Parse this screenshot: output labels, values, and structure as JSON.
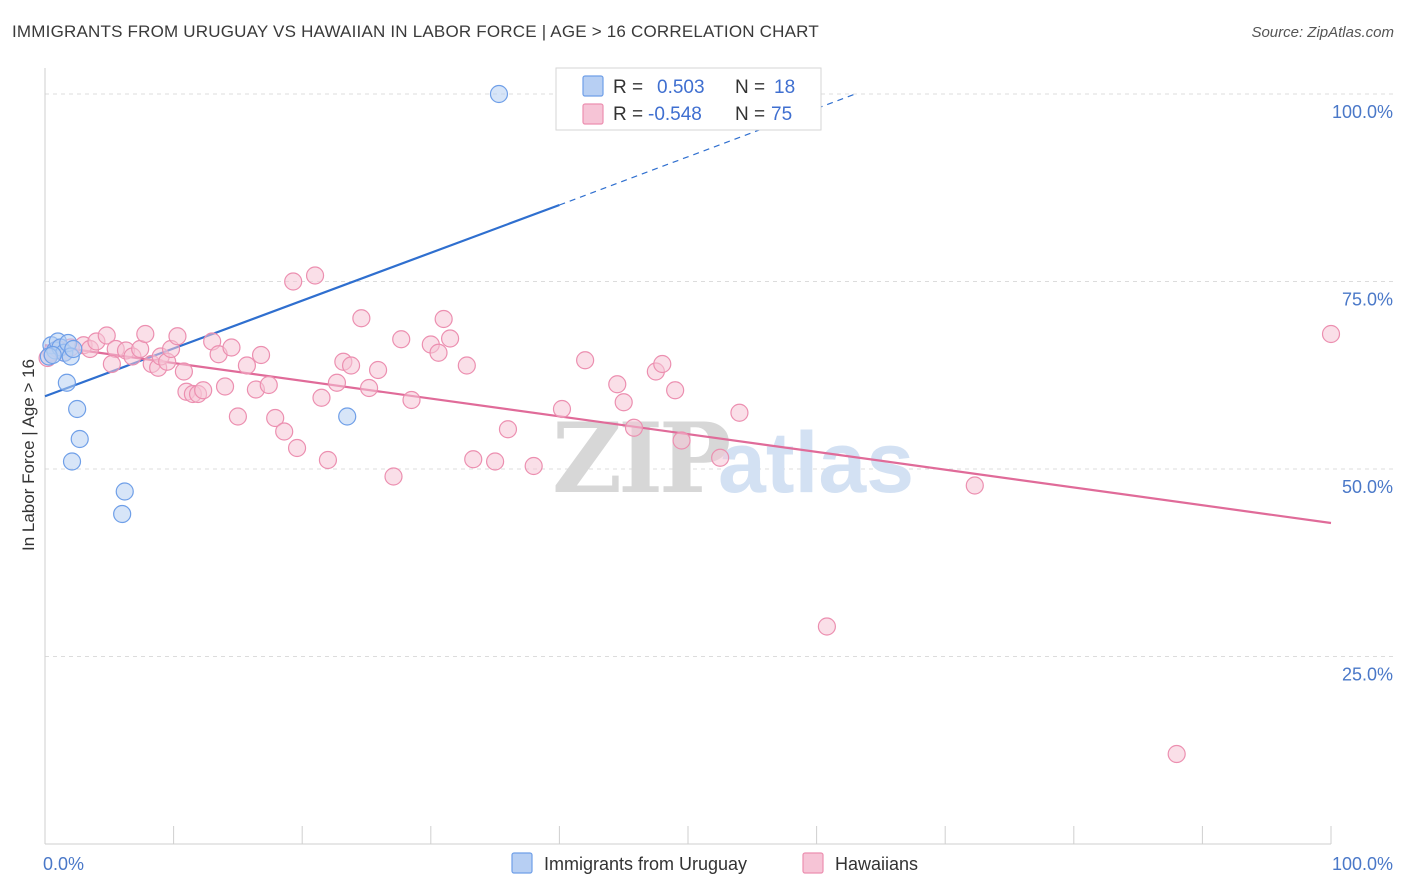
{
  "title": "IMMIGRANTS FROM URUGUAY VS HAWAIIAN IN LABOR FORCE | AGE > 16 CORRELATION CHART",
  "source": "Source: ZipAtlas.com",
  "watermark": {
    "zip": "ZIP",
    "atlas": "atlas"
  },
  "colors": {
    "blue": "#6f9fe8",
    "blue_fill": "#b7cff3",
    "blue_line": "#2f6fcf",
    "pink": "#ec8fb0",
    "pink_fill": "#f6c4d6",
    "pink_line": "#e06b99",
    "grid": "#dcdcdc",
    "tick_text": "#4a78c8"
  },
  "legend": {
    "r_label": "R =",
    "n_label": "N =",
    "rows": [
      {
        "r": "0.503",
        "n": "18",
        "color": "blue"
      },
      {
        "r": "-0.548",
        "n": "75",
        "color": "pink"
      }
    ]
  },
  "bottom_legend": [
    "Immigrants from Uruguay",
    "Hawaiians"
  ],
  "chart_data": {
    "type": "scatter",
    "xlabel": "",
    "ylabel": "In Labor Force | Age > 16",
    "xlim": [
      0,
      100
    ],
    "ylim": [
      0,
      102
    ],
    "x_tick_labels": [
      "0.0%",
      "100.0%"
    ],
    "y_ticks": [
      25,
      50,
      75,
      100
    ],
    "y_tick_labels": [
      "25.0%",
      "50.0%",
      "75.0%",
      "100.0%"
    ],
    "grid": true,
    "series": [
      {
        "name": "Immigrants from Uruguay",
        "color": "blue",
        "r": 0.503,
        "n": 18,
        "points": [
          [
            0.5,
            66.5
          ],
          [
            0.8,
            65.8
          ],
          [
            1.0,
            67.0
          ],
          [
            1.2,
            66.2
          ],
          [
            1.5,
            65.5
          ],
          [
            0.3,
            65.0
          ],
          [
            0.6,
            65.2
          ],
          [
            1.8,
            66.8
          ],
          [
            2.0,
            65.0
          ],
          [
            2.2,
            66.0
          ],
          [
            1.7,
            61.5
          ],
          [
            2.5,
            58.0
          ],
          [
            2.7,
            54.0
          ],
          [
            2.1,
            51.0
          ],
          [
            6.2,
            47.0
          ],
          [
            6.0,
            44.0
          ],
          [
            23.5,
            57.0
          ],
          [
            35.3,
            100.0
          ]
        ],
        "trend": {
          "x0": 0,
          "y0": 59.7,
          "x1": 40,
          "y1": 85.2,
          "dash_to_x": 63,
          "dash_to_y": 100.0
        }
      },
      {
        "name": "Hawaiians",
        "color": "pink",
        "r": -0.548,
        "n": 75,
        "points": [
          [
            0.5,
            65.5
          ],
          [
            1.0,
            66.0
          ],
          [
            1.5,
            65.5
          ],
          [
            2.0,
            66.2
          ],
          [
            3.0,
            66.5
          ],
          [
            3.5,
            66.0
          ],
          [
            4.0,
            67.0
          ],
          [
            4.8,
            67.8
          ],
          [
            5.5,
            66.0
          ],
          [
            5.2,
            64.0
          ],
          [
            6.3,
            65.8
          ],
          [
            6.8,
            65.0
          ],
          [
            7.4,
            66.0
          ],
          [
            7.8,
            68.0
          ],
          [
            8.3,
            64.0
          ],
          [
            8.8,
            63.5
          ],
          [
            9.0,
            65.0
          ],
          [
            9.5,
            64.3
          ],
          [
            9.8,
            66.0
          ],
          [
            10.3,
            67.7
          ],
          [
            10.8,
            63.0
          ],
          [
            11.0,
            60.3
          ],
          [
            11.5,
            60.0
          ],
          [
            11.9,
            60.0
          ],
          [
            12.3,
            60.5
          ],
          [
            13.0,
            67.0
          ],
          [
            13.5,
            65.3
          ],
          [
            14.0,
            61.0
          ],
          [
            14.5,
            66.2
          ],
          [
            15.0,
            57.0
          ],
          [
            15.7,
            63.8
          ],
          [
            16.4,
            60.6
          ],
          [
            16.8,
            65.2
          ],
          [
            17.4,
            61.2
          ],
          [
            17.9,
            56.8
          ],
          [
            18.6,
            55.0
          ],
          [
            19.3,
            75.0
          ],
          [
            19.6,
            52.8
          ],
          [
            21.0,
            75.8
          ],
          [
            21.5,
            59.5
          ],
          [
            22.0,
            51.2
          ],
          [
            22.7,
            61.5
          ],
          [
            23.2,
            64.3
          ],
          [
            23.8,
            63.8
          ],
          [
            24.6,
            70.1
          ],
          [
            25.2,
            60.8
          ],
          [
            25.9,
            63.2
          ],
          [
            27.1,
            49.0
          ],
          [
            27.7,
            67.3
          ],
          [
            28.5,
            59.2
          ],
          [
            30.0,
            66.6
          ],
          [
            30.6,
            65.5
          ],
          [
            31.0,
            70.0
          ],
          [
            31.5,
            67.4
          ],
          [
            32.8,
            63.8
          ],
          [
            33.3,
            51.3
          ],
          [
            35.0,
            51.0
          ],
          [
            36.0,
            55.3
          ],
          [
            38.0,
            50.4
          ],
          [
            40.2,
            58.0
          ],
          [
            42.0,
            64.5
          ],
          [
            44.5,
            61.3
          ],
          [
            45.0,
            58.9
          ],
          [
            45.8,
            55.5
          ],
          [
            47.5,
            63.0
          ],
          [
            48.0,
            64.0
          ],
          [
            49.0,
            60.5
          ],
          [
            49.5,
            53.8
          ],
          [
            52.5,
            51.5
          ],
          [
            54.0,
            57.5
          ],
          [
            72.3,
            47.8
          ],
          [
            60.8,
            29.0
          ],
          [
            88.0,
            12.0
          ],
          [
            100.0,
            68.0
          ],
          [
            0.2,
            64.8
          ]
        ],
        "trend": {
          "x0": 0,
          "y0": 66.5,
          "x1": 100,
          "y1": 42.8
        }
      }
    ]
  }
}
